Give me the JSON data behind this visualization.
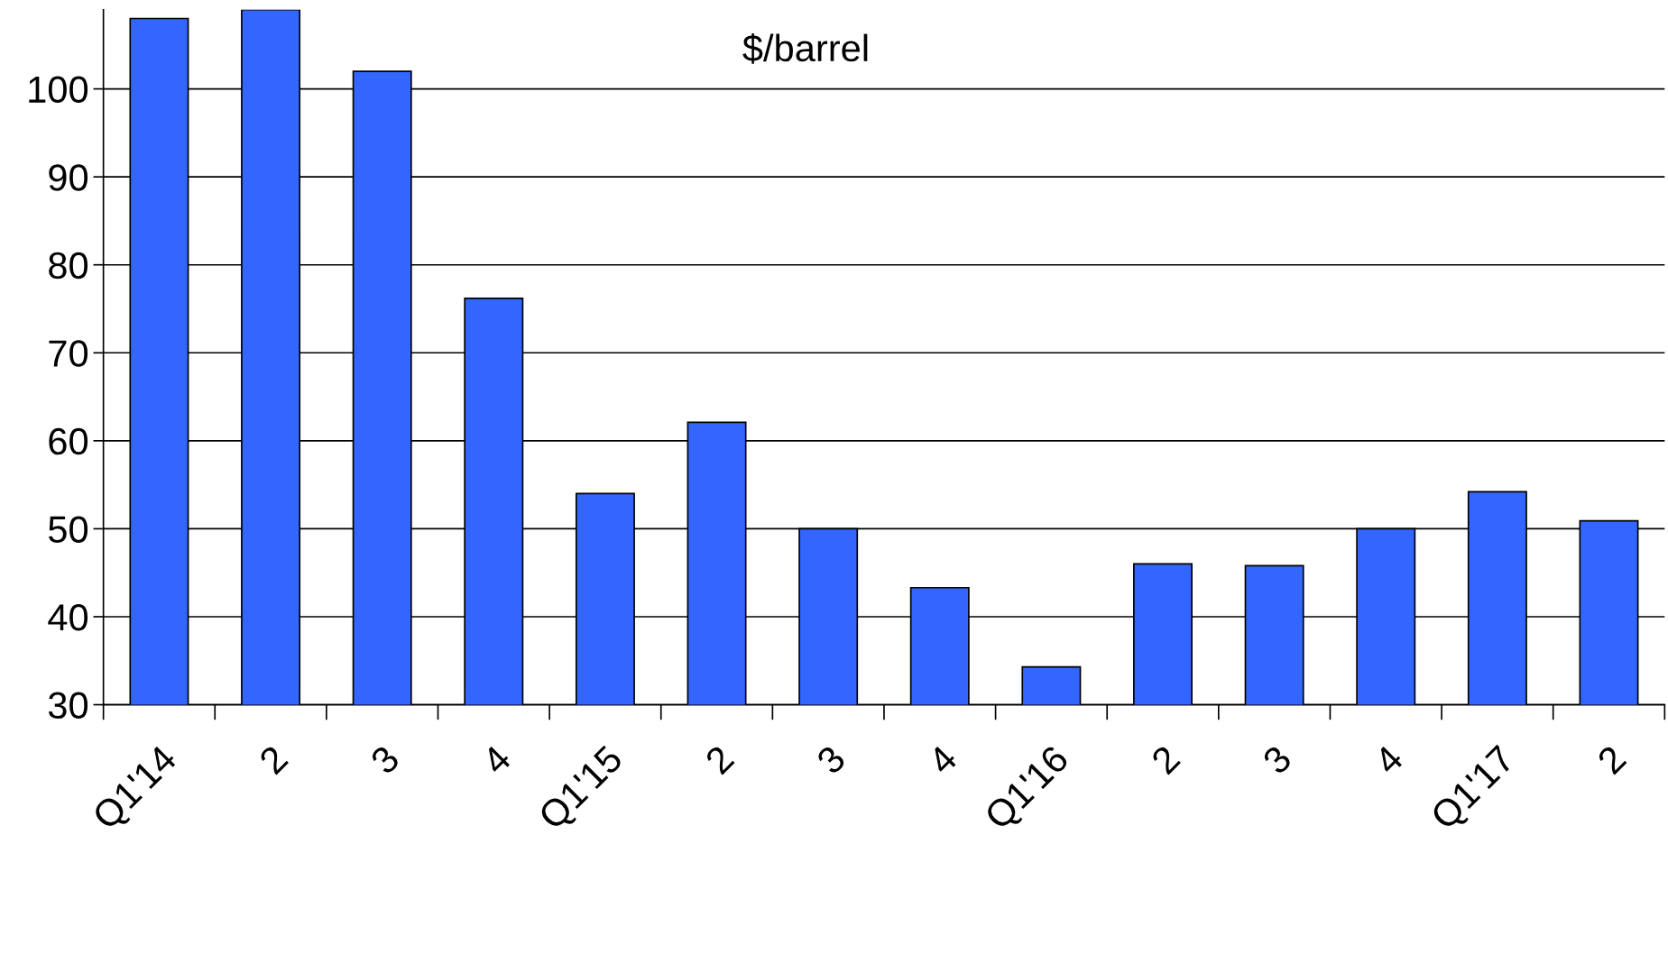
{
  "chart_data": {
    "type": "bar",
    "title": "$/barrel",
    "categories": [
      "Q1'14",
      "2",
      "3",
      "4",
      "Q1'15",
      "2",
      "3",
      "4",
      "Q1'16",
      "2",
      "3",
      "4",
      "Q1'17",
      "2"
    ],
    "values": [
      108,
      109,
      102,
      76.2,
      54,
      62.1,
      50,
      43.3,
      34.3,
      46,
      45.8,
      50,
      54.2,
      50.9
    ],
    "color": "#3366ff",
    "ylim": [
      30,
      109
    ],
    "yticks": [
      30,
      40,
      50,
      60,
      70,
      80,
      90,
      100
    ],
    "grid": "y"
  }
}
